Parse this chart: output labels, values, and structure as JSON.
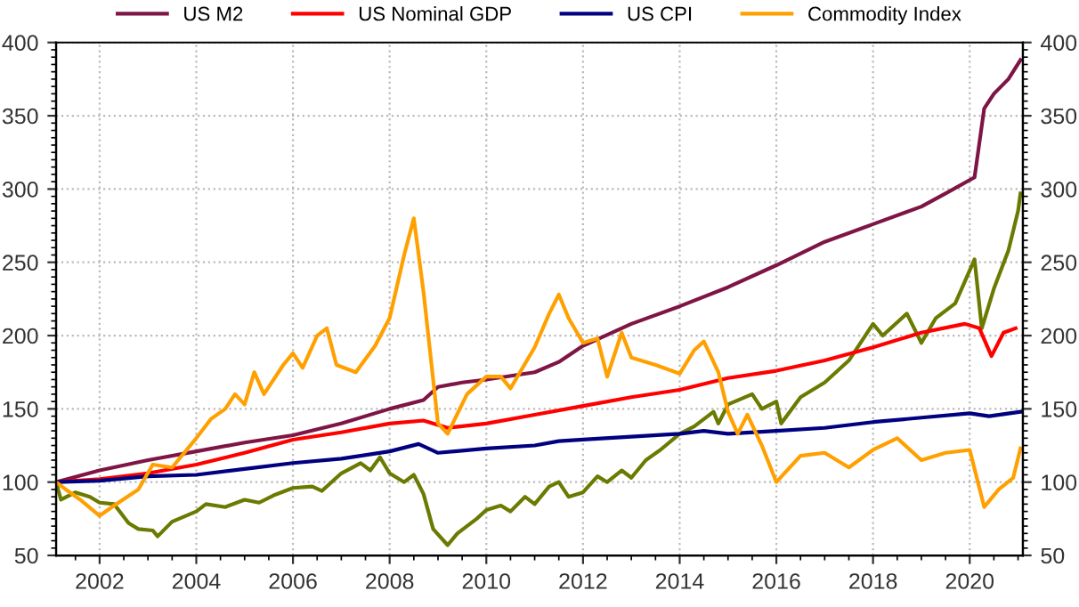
{
  "chart_data": {
    "type": "line",
    "xlim": [
      2001.1,
      2021.1
    ],
    "xticks": [
      2002,
      2004,
      2006,
      2008,
      2010,
      2012,
      2014,
      2016,
      2018,
      2020
    ],
    "ylim": [
      50,
      400
    ],
    "yticks": [
      50,
      100,
      150,
      200,
      250,
      300,
      350,
      400
    ],
    "y2lim": [
      50,
      400
    ],
    "y2ticks": [
      50,
      100,
      150,
      200,
      250,
      300,
      350,
      400
    ],
    "grid": true,
    "legend": "top",
    "line_style": "solid",
    "marker": "none",
    "series": [
      {
        "name": "US M2",
        "color": "#7f1545",
        "x": [
          2001.1,
          2002,
          2003,
          2004,
          2005,
          2006,
          2007,
          2008,
          2008.7,
          2009,
          2009.5,
          2010,
          2011,
          2011.5,
          2012,
          2013,
          2014,
          2015,
          2016,
          2017,
          2018,
          2019,
          2019.5,
          2020.1,
          2020.3,
          2020.5,
          2020.8,
          2021.05
        ],
        "values": [
          100,
          108,
          115,
          121,
          127,
          132,
          140,
          150,
          156,
          165,
          168,
          170,
          175,
          182,
          193,
          208,
          220,
          233,
          248,
          264,
          276,
          288,
          297,
          308,
          355,
          365,
          375,
          388
        ]
      },
      {
        "color": "#6b7a00",
        "x": [
          2001.1,
          2001.2,
          2001.5,
          2001.8,
          2002,
          2002.3,
          2002.6,
          2002.8,
          2003.1,
          2003.2,
          2003.5,
          2004,
          2004.2,
          2004.6,
          2005,
          2005.3,
          2005.6,
          2006,
          2006.4,
          2006.6,
          2007,
          2007.4,
          2007.6,
          2007.8,
          2008,
          2008.3,
          2008.5,
          2008.7,
          2008.9,
          2009.2,
          2009.4,
          2009.8,
          2010,
          2010.3,
          2010.5,
          2010.8,
          2011,
          2011.3,
          2011.5,
          2011.7,
          2012,
          2012.3,
          2012.5,
          2012.8,
          2013,
          2013.3,
          2013.6,
          2014,
          2014.3,
          2014.7,
          2014.8,
          2015,
          2015.5,
          2015.7,
          2016,
          2016.1,
          2016.5,
          2017,
          2017.5,
          2018,
          2018.2,
          2018.7,
          2019,
          2019.3,
          2019.7,
          2020.1,
          2020.25,
          2020.5,
          2020.8,
          2021,
          2021.05
        ],
        "values": [
          100,
          88,
          93,
          90,
          86,
          85,
          72,
          68,
          67,
          63,
          73,
          80,
          85,
          83,
          88,
          86,
          91,
          96,
          97,
          94,
          106,
          113,
          108,
          117,
          106,
          100,
          105,
          92,
          68,
          57,
          65,
          75,
          81,
          84,
          80,
          90,
          85,
          97,
          100,
          90,
          93,
          104,
          100,
          108,
          103,
          115,
          122,
          133,
          138,
          148,
          140,
          153,
          160,
          150,
          155,
          140,
          158,
          168,
          183,
          208,
          200,
          215,
          195,
          212,
          222,
          252,
          205,
          232,
          258,
          285,
          297
        ]
      },
      {
        "name": "US Nominal GDP",
        "color": "#ff0000",
        "x": [
          2001.1,
          2002,
          2003,
          2004,
          2005,
          2006,
          2007,
          2008,
          2008.7,
          2009.2,
          2010,
          2011,
          2012,
          2013,
          2014,
          2015,
          2016,
          2017,
          2018,
          2019,
          2019.9,
          2020.2,
          2020.45,
          2020.7,
          2020.95
        ],
        "values": [
          100,
          102,
          106,
          112,
          120,
          129,
          134,
          140,
          142,
          137,
          140,
          146,
          152,
          158,
          163,
          171,
          176,
          183,
          192,
          202,
          208,
          205,
          186,
          202,
          205
        ]
      },
      {
        "name": "US CPI",
        "color": "#000080",
        "x": [
          2001.1,
          2002,
          2003,
          2004,
          2005,
          2006,
          2007,
          2008,
          2008.6,
          2009,
          2010,
          2011,
          2011.5,
          2012,
          2013,
          2014,
          2014.5,
          2015,
          2016,
          2017,
          2018,
          2019,
          2020,
          2020.4,
          2021.05
        ],
        "values": [
          100,
          101,
          104,
          105,
          109,
          113,
          116,
          121,
          126,
          120,
          123,
          125,
          128,
          129,
          131,
          133,
          135,
          133,
          135,
          137,
          141,
          144,
          147,
          145,
          148
        ]
      },
      {
        "name": "Commodity Index",
        "color": "#ffa000",
        "x": [
          2001.1,
          2001.3,
          2001.6,
          2002,
          2002.3,
          2002.8,
          2003.1,
          2003.5,
          2004,
          2004.3,
          2004.6,
          2004.8,
          2005,
          2005.2,
          2005.4,
          2005.8,
          2006,
          2006.2,
          2006.5,
          2006.7,
          2006.9,
          2007.3,
          2007.7,
          2008,
          2008.3,
          2008.5,
          2008.7,
          2009,
          2009.2,
          2009.6,
          2010,
          2010.3,
          2010.5,
          2011,
          2011.3,
          2011.5,
          2011.7,
          2012,
          2012.3,
          2012.5,
          2012.8,
          2013,
          2013.5,
          2014,
          2014.3,
          2014.5,
          2014.8,
          2015,
          2015.2,
          2015.4,
          2015.7,
          2016,
          2016.5,
          2017,
          2017.5,
          2018,
          2018.5,
          2019,
          2019.5,
          2020,
          2020.3,
          2020.6,
          2020.9,
          2021.05
        ],
        "values": [
          100,
          95,
          88,
          77,
          84,
          95,
          112,
          110,
          130,
          143,
          150,
          160,
          153,
          175,
          160,
          180,
          188,
          178,
          200,
          205,
          180,
          175,
          193,
          212,
          255,
          280,
          230,
          140,
          133,
          160,
          172,
          172,
          164,
          192,
          215,
          228,
          212,
          195,
          198,
          172,
          202,
          185,
          180,
          174,
          190,
          196,
          175,
          148,
          133,
          146,
          125,
          100,
          118,
          120,
          110,
          122,
          130,
          115,
          120,
          122,
          83,
          95,
          103,
          123
        ]
      }
    ]
  }
}
